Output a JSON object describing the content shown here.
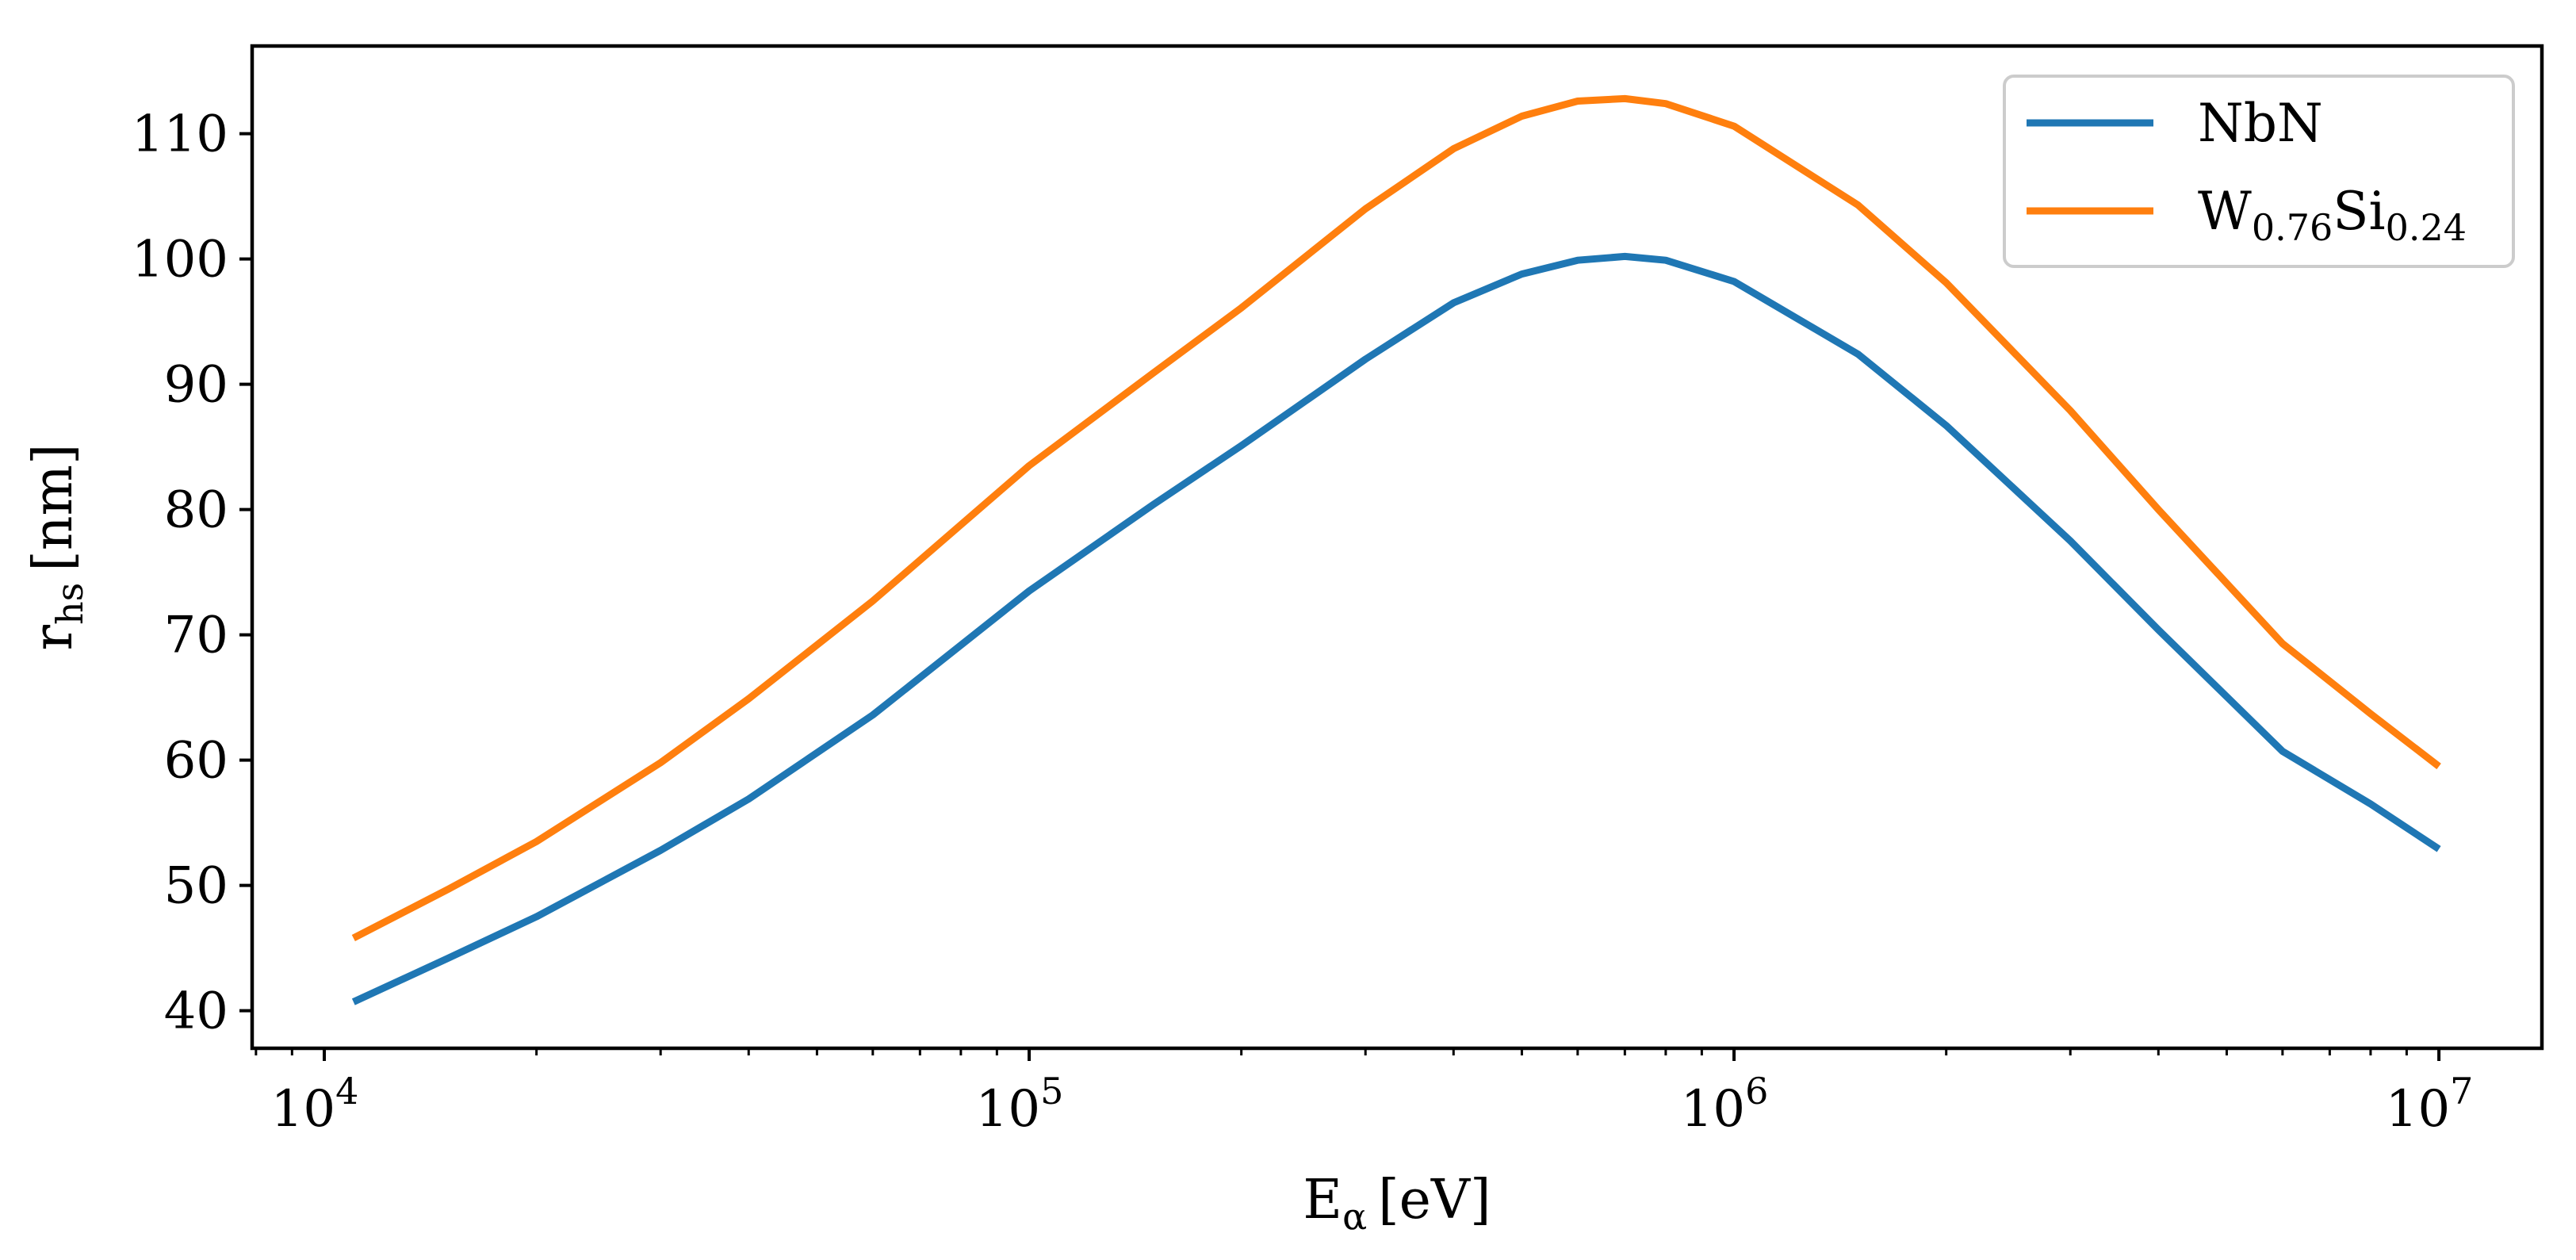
{
  "chart_data": {
    "type": "line",
    "title": "",
    "x_scale": "log",
    "xlabel": {
      "main": "E",
      "sub": "α",
      "unit": "[eV]"
    },
    "ylabel": {
      "main": "r",
      "sub": "hs",
      "unit": "[nm]"
    },
    "xlim": [
      7900,
      14000000
    ],
    "ylim": [
      37,
      117
    ],
    "x_ticks": [
      {
        "value": 10000,
        "base": "10",
        "exp": "4"
      },
      {
        "value": 100000,
        "base": "10",
        "exp": "5"
      },
      {
        "value": 1000000,
        "base": "10",
        "exp": "6"
      },
      {
        "value": 10000000,
        "base": "10",
        "exp": "7"
      }
    ],
    "y_ticks": [
      40,
      50,
      60,
      70,
      80,
      90,
      100,
      110
    ],
    "grid": false,
    "legend_position": "top-right",
    "x": [
      11000,
      15000,
      20000,
      30000,
      40000,
      60000,
      100000,
      150000,
      200000,
      300000,
      400000,
      500000,
      600000,
      700000,
      800000,
      1000000,
      1500000,
      2000000,
      3000000,
      4000000,
      6000000,
      8000000,
      10000000
    ],
    "series": [
      {
        "name": "NbN",
        "label": {
          "main": "NbN",
          "parts": []
        },
        "color": "#1f77b4",
        "values": [
          40.7,
          44.2,
          47.5,
          52.8,
          56.9,
          63.6,
          73.5,
          80.4,
          85.1,
          92.0,
          96.5,
          98.8,
          99.9,
          100.2,
          99.9,
          98.2,
          92.4,
          86.7,
          77.5,
          70.4,
          60.7,
          56.5,
          52.9
        ]
      },
      {
        "name": "W0.76Si0.24",
        "label": {
          "main": "W",
          "parts": [
            {
              "sub": "0.76"
            },
            {
              "text": "Si"
            },
            {
              "sub": "0.24"
            }
          ]
        },
        "color": "#ff7f0e",
        "values": [
          45.8,
          49.7,
          53.5,
          59.8,
          64.9,
          72.7,
          83.5,
          90.9,
          96.1,
          104.0,
          108.8,
          111.4,
          112.6,
          112.8,
          112.4,
          110.6,
          104.3,
          98.1,
          87.9,
          80.0,
          69.3,
          63.7,
          59.5
        ]
      }
    ]
  }
}
